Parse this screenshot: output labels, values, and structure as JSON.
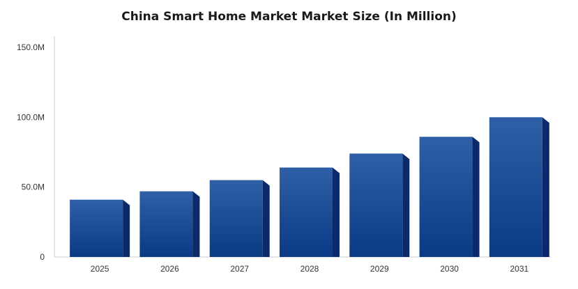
{
  "chart_data": {
    "type": "bar",
    "title": "China Smart Home Market Market Size (In Million)",
    "categories": [
      "2025",
      "2026",
      "2027",
      "2028",
      "2029",
      "2030",
      "2031"
    ],
    "values": [
      41,
      47,
      55,
      64,
      74,
      86,
      100
    ],
    "unit": "M",
    "xlabel": "",
    "ylabel": "",
    "ylim": [
      0,
      150
    ],
    "yticks": [
      0,
      50,
      100,
      150
    ],
    "ytick_labels": [
      "0",
      "50.0M",
      "100.0M",
      "150.0M"
    ],
    "grid": false,
    "legend": "none",
    "style": "3d-bar"
  },
  "colors": {
    "bar_top": "#2f5fa6",
    "bar_bottom": "#0a3a84",
    "bar_side": "#0a2a6a",
    "axis": "#cccccc"
  }
}
